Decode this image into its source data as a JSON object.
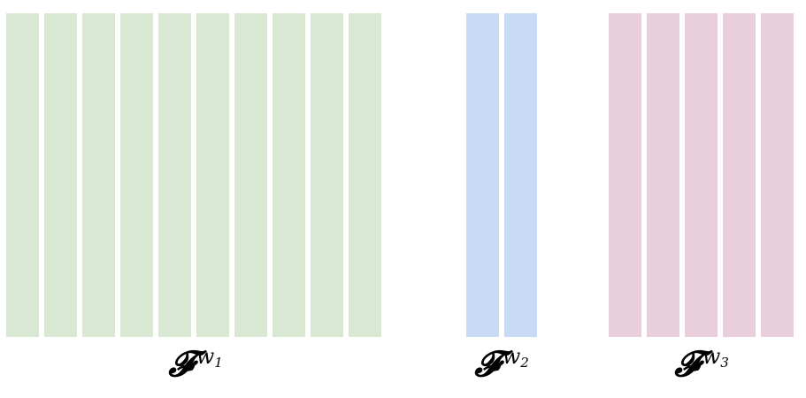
{
  "groups": [
    {
      "id": "w1",
      "stripe_count": 10,
      "color": "#d9e8d3",
      "label": {
        "symbol": "𝓕",
        "superscript": "w",
        "subscript": "1"
      }
    },
    {
      "id": "w2",
      "stripe_count": 2,
      "color": "#c9daf4",
      "label": {
        "symbol": "𝓕",
        "superscript": "w",
        "subscript": "2"
      }
    },
    {
      "id": "w3",
      "stripe_count": 5,
      "color": "#e9cfdb",
      "label": {
        "symbol": "𝓕",
        "superscript": "w",
        "subscript": "3"
      }
    }
  ]
}
